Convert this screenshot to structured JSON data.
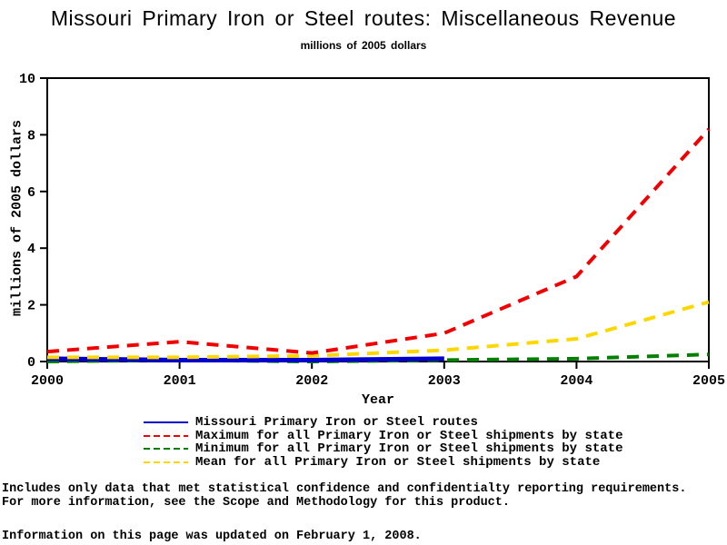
{
  "chart_data": {
    "type": "line",
    "title": "Missouri Primary Iron or Steel routes: Miscellaneous Revenue",
    "subtitle": "millions of 2005 dollars",
    "xlabel": "Year",
    "ylabel": "millions of 2005 dollars",
    "x": [
      2000,
      2001,
      2002,
      2003,
      2004,
      2005
    ],
    "x_tick_labels": [
      "2000",
      "2001",
      "2002",
      "2003",
      "2004",
      "2005"
    ],
    "y_ticks": [
      0,
      2,
      4,
      6,
      8,
      10
    ],
    "ylim": [
      0,
      10
    ],
    "xlim": [
      2000,
      2005
    ],
    "grid": false,
    "legend_position": "bottom",
    "axis_color": "#000000",
    "series": [
      {
        "name": "Missouri Primary Iron or Steel routes",
        "color": "#0000CC",
        "style": "solid",
        "values": [
          0.1,
          0.05,
          0.05,
          0.1,
          null,
          null
        ]
      },
      {
        "name": "Maximum for all Primary Iron or Steel shipments by state",
        "color": "#F00000",
        "style": "dashed",
        "values": [
          0.35,
          0.7,
          0.3,
          1.0,
          3.0,
          8.2
        ]
      },
      {
        "name": "Minimum for all Primary Iron or Steel shipments by state",
        "color": "#008000",
        "style": "dashed",
        "values": [
          0.0,
          0.05,
          0.0,
          0.05,
          0.1,
          0.25
        ]
      },
      {
        "name": "Mean for all Primary Iron or Steel shipments by state",
        "color": "#FFD700",
        "style": "dashed",
        "values": [
          0.15,
          0.15,
          0.2,
          0.4,
          0.8,
          2.1
        ]
      }
    ]
  },
  "footer": {
    "line1": "Includes only data that met statistical confidence and confidentialty reporting requirements.",
    "line2": "For more information, see the Scope and Methodology for this product.",
    "updated": "Information on this page was updated on February 1, 2008."
  }
}
